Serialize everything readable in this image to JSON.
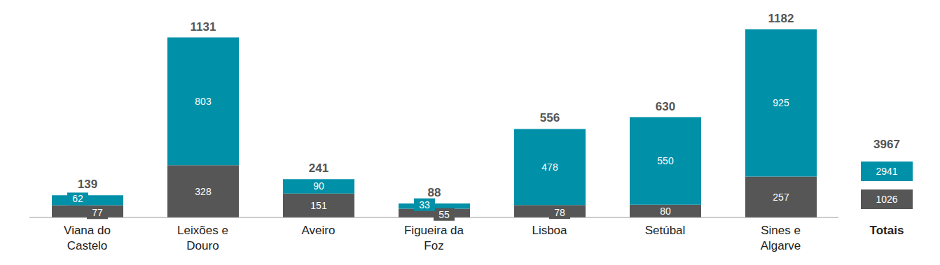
{
  "chart_data": {
    "type": "bar",
    "stacked": true,
    "data_labels": true,
    "tick_labels": "x",
    "grid": false,
    "categories": [
      "Viana do Castelo",
      "Leixões e Douro",
      "Aveiro",
      "Figueira da Foz",
      "Lisboa",
      "Setúbal",
      "Sines e Algarve"
    ],
    "ylim": [
      0,
      1182
    ],
    "series": [
      {
        "color": "#565656",
        "values": [
          77,
          328,
          151,
          55,
          78,
          80,
          257
        ]
      },
      {
        "color": "#0090a8",
        "values": [
          62,
          803,
          90,
          33,
          478,
          550,
          925
        ]
      }
    ],
    "totals": [
      139,
      1131,
      241,
      88,
      556,
      630,
      1182
    ],
    "summary": {
      "label": "Totais",
      "total": 3967,
      "values": [
        1026,
        2941
      ]
    }
  }
}
